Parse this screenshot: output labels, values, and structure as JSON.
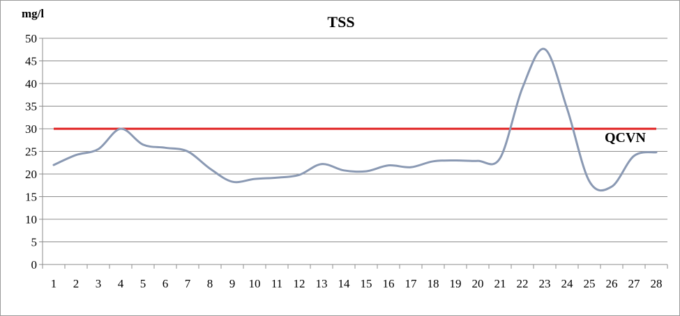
{
  "chart_data": {
    "type": "line",
    "title": "TSS",
    "ylabel": "mg/l",
    "xlabel": "",
    "ylim": [
      0,
      50
    ],
    "yticks": [
      0,
      5,
      10,
      15,
      20,
      25,
      30,
      35,
      40,
      45,
      50
    ],
    "grid": true,
    "x": [
      1,
      2,
      3,
      4,
      5,
      6,
      7,
      8,
      9,
      10,
      11,
      12,
      13,
      14,
      15,
      16,
      17,
      18,
      19,
      20,
      21,
      22,
      23,
      24,
      25,
      26,
      27,
      28
    ],
    "series": [
      {
        "values": [
          22,
          24.2,
          25.5,
          30,
          26.5,
          25.8,
          25,
          21.2,
          18.3,
          18.9,
          19.2,
          19.8,
          22.2,
          20.8,
          20.6,
          21.9,
          21.5,
          22.8,
          23,
          22.9,
          23.5,
          39,
          47.6,
          34.5,
          18.4,
          17.2,
          24,
          24.8
        ],
        "color": "#8a99b3"
      }
    ],
    "reference_line": {
      "label": "QCVN",
      "value": 30,
      "color": "#e02020"
    }
  }
}
